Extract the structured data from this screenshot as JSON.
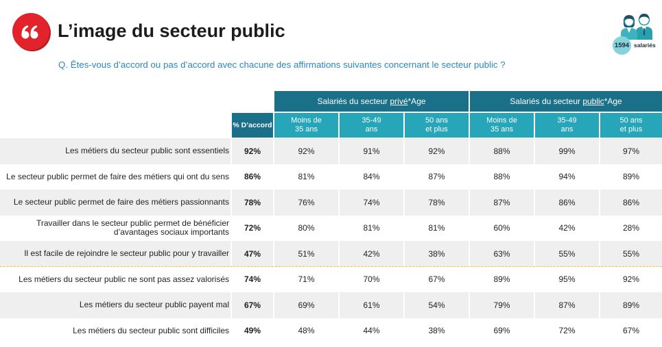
{
  "title": "L’image du secteur public",
  "question": "Q. Êtes-vous d’accord ou pas d’accord avec chacune des affirmations suivantes concernant le secteur public ?",
  "respondents": {
    "count": "1594",
    "label": "salariés"
  },
  "icons": {
    "title": "quote-icon",
    "respondents": "people-icon"
  },
  "colors": {
    "accent_red": "#e3232b",
    "header_dark": "#1a7089",
    "header_light": "#26a6b8",
    "question_text": "#2a87c0",
    "row_shade": "#efefef",
    "separator": "#f0c23b"
  },
  "table": {
    "groups": [
      {
        "prefix": "Salariés du secteur ",
        "emphasis": "privé",
        "suffix": "*Age"
      },
      {
        "prefix": "Salariés du secteur ",
        "emphasis": "public",
        "suffix": "*Age"
      }
    ],
    "agree_header": "% D’accord",
    "age_headers": [
      "Moins de\n35 ans",
      "35-49\nans",
      "50 ans\net plus"
    ],
    "rows": [
      {
        "label": "Les métiers du secteur public sont essentiels",
        "agree": "92%",
        "private": [
          "92%",
          "91%",
          "92%"
        ],
        "public": [
          "88%",
          "99%",
          "97%"
        ]
      },
      {
        "label": "Le secteur public permet de faire des métiers qui ont du sens",
        "agree": "86%",
        "private": [
          "81%",
          "84%",
          "87%"
        ],
        "public": [
          "88%",
          "94%",
          "89%"
        ]
      },
      {
        "label": "Le secteur public permet de faire des métiers passionnants",
        "agree": "78%",
        "private": [
          "76%",
          "74%",
          "78%"
        ],
        "public": [
          "87%",
          "86%",
          "86%"
        ]
      },
      {
        "label": "Travailler dans le secteur public permet de bénéficier\nd’avantages sociaux importants",
        "agree": "72%",
        "private": [
          "80%",
          "81%",
          "81%"
        ],
        "public": [
          "60%",
          "42%",
          "28%"
        ]
      },
      {
        "label": "Il est facile de rejoindre le secteur public pour y travailler",
        "agree": "47%",
        "private": [
          "51%",
          "42%",
          "38%"
        ],
        "public": [
          "63%",
          "55%",
          "55%"
        ]
      },
      {
        "label": "Les métiers du secteur public ne sont pas assez valorisés",
        "agree": "74%",
        "private": [
          "71%",
          "70%",
          "67%"
        ],
        "public": [
          "89%",
          "95%",
          "92%"
        ]
      },
      {
        "label": "Les métiers du secteur public payent mal",
        "agree": "67%",
        "private": [
          "69%",
          "61%",
          "54%"
        ],
        "public": [
          "79%",
          "87%",
          "89%"
        ]
      },
      {
        "label": "Les métiers du secteur public sont difficiles",
        "agree": "49%",
        "private": [
          "48%",
          "44%",
          "38%"
        ],
        "public": [
          "69%",
          "72%",
          "67%"
        ]
      }
    ]
  }
}
